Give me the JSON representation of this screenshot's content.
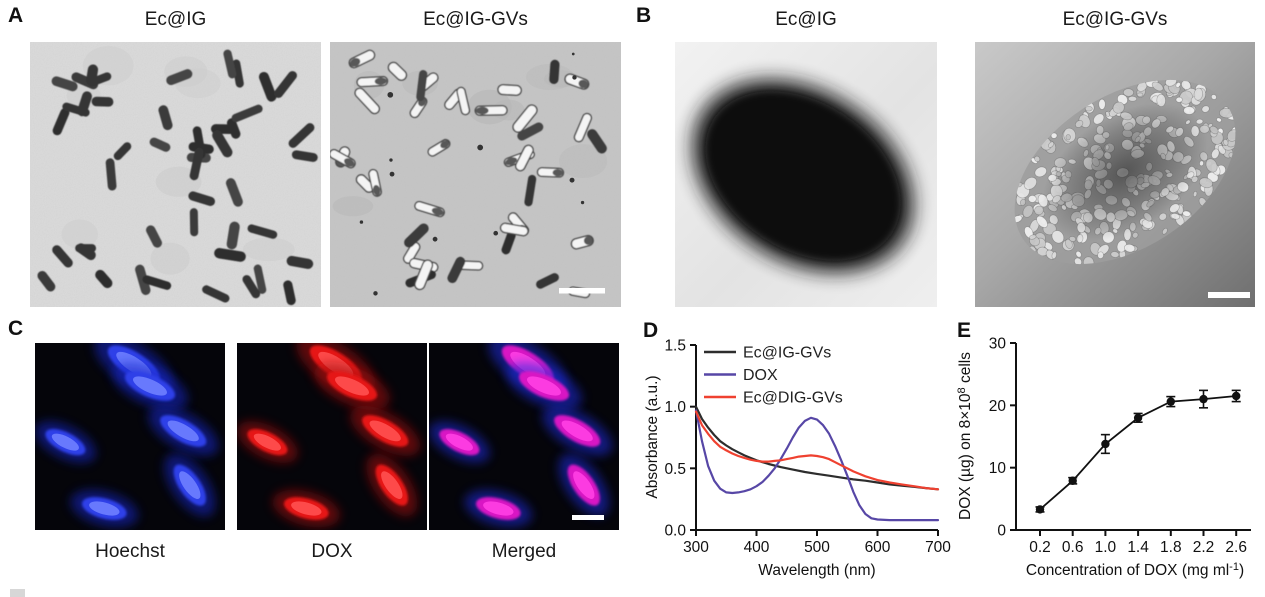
{
  "figure": {
    "panels": {
      "A": {
        "label": "A",
        "titles": [
          "Ec@IG",
          "Ec@IG-GVs"
        ]
      },
      "B": {
        "label": "B",
        "titles": [
          "Ec@IG",
          "Ec@IG-GVs"
        ]
      },
      "C": {
        "label": "C",
        "captions": [
          "Hoechst",
          "DOX",
          "Merged"
        ]
      },
      "D": {
        "label": "D"
      },
      "E": {
        "label": "E"
      }
    }
  },
  "chart_data": [
    {
      "type": "line",
      "title": "",
      "xlabel": "Wavelength (nm)",
      "ylabel": "Absorbance (a.u.)",
      "xlim": [
        300,
        700
      ],
      "ylim": [
        0,
        1.5
      ],
      "xticks": [
        300,
        400,
        500,
        600,
        700
      ],
      "ytick_labels": [
        "0.0",
        "0.5",
        "1.0",
        "1.5"
      ],
      "ytick_values": [
        0,
        0.5,
        1.0,
        1.5
      ],
      "grid": false,
      "legend_position": "top-left-inside",
      "axis_color": "#111111",
      "series": [
        {
          "name": "Ec@IG-GVs",
          "color": "#2d2d2d",
          "x": [
            300,
            310,
            320,
            330,
            340,
            350,
            360,
            370,
            380,
            390,
            400,
            420,
            440,
            460,
            480,
            500,
            520,
            540,
            560,
            580,
            600,
            620,
            640,
            660,
            680,
            700
          ],
          "y": [
            1.0,
            0.9,
            0.83,
            0.77,
            0.72,
            0.685,
            0.655,
            0.63,
            0.605,
            0.585,
            0.565,
            0.535,
            0.51,
            0.49,
            0.47,
            0.455,
            0.44,
            0.425,
            0.41,
            0.4,
            0.385,
            0.37,
            0.36,
            0.35,
            0.34,
            0.33
          ]
        },
        {
          "name": "DOX",
          "color": "#5747a6",
          "x": [
            300,
            310,
            320,
            330,
            340,
            350,
            360,
            370,
            380,
            390,
            400,
            410,
            420,
            430,
            440,
            450,
            460,
            470,
            480,
            490,
            500,
            510,
            520,
            530,
            540,
            550,
            560,
            570,
            580,
            590,
            600,
            620,
            650,
            700
          ],
          "y": [
            0.97,
            0.72,
            0.52,
            0.4,
            0.335,
            0.305,
            0.3,
            0.305,
            0.315,
            0.33,
            0.355,
            0.39,
            0.44,
            0.5,
            0.575,
            0.66,
            0.75,
            0.83,
            0.885,
            0.91,
            0.895,
            0.85,
            0.78,
            0.68,
            0.565,
            0.44,
            0.31,
            0.2,
            0.13,
            0.095,
            0.085,
            0.08,
            0.08,
            0.08
          ]
        },
        {
          "name": "Ec@DIG-GVs",
          "color": "#ef4130",
          "x": [
            300,
            310,
            320,
            330,
            340,
            350,
            360,
            370,
            380,
            390,
            400,
            410,
            420,
            430,
            440,
            450,
            460,
            470,
            480,
            490,
            500,
            510,
            520,
            530,
            540,
            550,
            560,
            570,
            580,
            590,
            600,
            620,
            640,
            660,
            680,
            700
          ],
          "y": [
            0.96,
            0.85,
            0.78,
            0.72,
            0.675,
            0.645,
            0.62,
            0.6,
            0.585,
            0.57,
            0.56,
            0.555,
            0.555,
            0.56,
            0.565,
            0.575,
            0.585,
            0.595,
            0.6,
            0.605,
            0.6,
            0.59,
            0.575,
            0.55,
            0.525,
            0.5,
            0.475,
            0.455,
            0.435,
            0.42,
            0.405,
            0.385,
            0.37,
            0.355,
            0.34,
            0.33
          ]
        }
      ]
    },
    {
      "type": "scatter-line-errorbar",
      "title": "",
      "xlabel_parts": [
        "Concentration of DOX (mg ml",
        "-1",
        ")"
      ],
      "ylabel_parts": [
        "DOX (µg) on 8×10",
        "8",
        " cells"
      ],
      "xlim": [
        0.2,
        2.6
      ],
      "ylim": [
        0,
        30
      ],
      "xticks": [
        0.2,
        0.6,
        1.0,
        1.4,
        1.8,
        2.2,
        2.6
      ],
      "yticks": [
        0,
        10,
        20,
        30
      ],
      "grid": false,
      "marker": "filled-circle",
      "marker_color": "#111111",
      "x": [
        0.2,
        0.6,
        1.0,
        1.4,
        1.8,
        2.2,
        2.6
      ],
      "y": [
        3.3,
        7.9,
        13.8,
        18.0,
        20.6,
        21.0,
        21.5
      ],
      "yerr": [
        0.4,
        0.5,
        1.5,
        0.7,
        0.8,
        1.4,
        0.9
      ]
    }
  ]
}
